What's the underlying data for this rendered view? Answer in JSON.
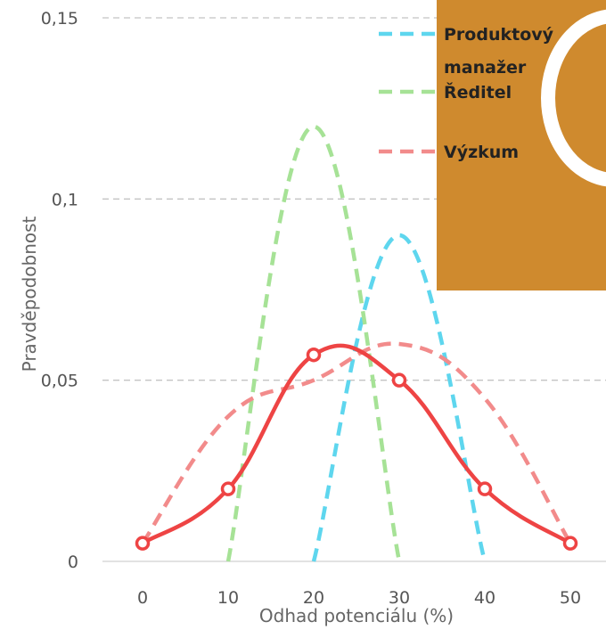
{
  "chart_data": {
    "type": "line",
    "xlabel": "Odhad potenciálu (%)",
    "ylabel": "Pravděpodobnost",
    "xlim": [
      -5,
      52
    ],
    "ylim": [
      0,
      0.15
    ],
    "x_ticks": [
      0,
      10,
      20,
      30,
      40,
      50
    ],
    "y_ticks": [
      0,
      0.05,
      0.1,
      0.15
    ],
    "x_tick_labels": [
      "0",
      "10",
      "20",
      "30",
      "40",
      "50"
    ],
    "y_tick_labels": [
      "0",
      "0,05",
      "0,1",
      "0,15"
    ],
    "grid": "horizontal dashed",
    "legend_position": "top-right",
    "series": [
      {
        "name": "Produktový manažer",
        "style": "dashed",
        "color": "#5ed6ee",
        "x": [
          20,
          30,
          40
        ],
        "y": [
          0,
          0.09,
          0
        ]
      },
      {
        "name": "Ředitel",
        "style": "dashed",
        "color": "#a6e296",
        "x": [
          10,
          20,
          30
        ],
        "y": [
          0,
          0.12,
          0
        ]
      },
      {
        "name": "Výzkum",
        "style": "dashed",
        "color": "#f28b8b",
        "x": [
          0,
          10,
          20,
          30,
          40,
          50
        ],
        "y": [
          0.005,
          0.04,
          0.05,
          0.06,
          0.045,
          0.005
        ]
      },
      {
        "name": "",
        "style": "solid",
        "color": "#ee4444",
        "markers": true,
        "x": [
          0,
          10,
          20,
          30,
          40,
          50
        ],
        "y": [
          0.005,
          0.02,
          0.057,
          0.05,
          0.02,
          0.005
        ]
      }
    ]
  },
  "legend": {
    "background": "#cf8a2e",
    "entries": [
      {
        "label": "Produktový manažer",
        "color": "#5ed6ee"
      },
      {
        "label": "Ředitel",
        "color": "#a6e296"
      },
      {
        "label": "Výzkum",
        "color": "#f28b8b"
      }
    ]
  }
}
